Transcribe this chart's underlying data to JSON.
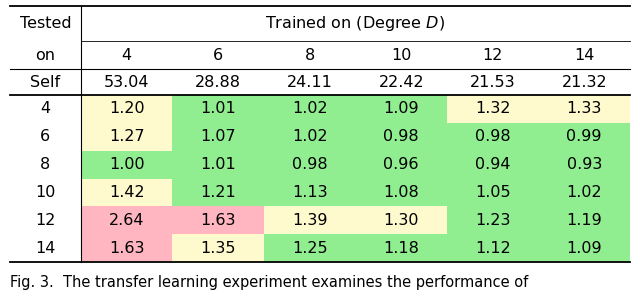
{
  "header_row1_col0": "Tested",
  "header_row1_span": "Trained on (Degree $D$)",
  "header_row2": [
    "on",
    "4",
    "6",
    "8",
    "10",
    "12",
    "14"
  ],
  "self_row": [
    "Self",
    "53.04",
    "28.88",
    "24.11",
    "22.42",
    "21.53",
    "21.32"
  ],
  "row_labels": [
    "4",
    "6",
    "8",
    "10",
    "12",
    "14"
  ],
  "data": [
    [
      1.2,
      1.01,
      1.02,
      1.09,
      1.32,
      1.33
    ],
    [
      1.27,
      1.07,
      1.02,
      0.98,
      0.98,
      0.99
    ],
    [
      1.0,
      1.01,
      0.98,
      0.96,
      0.94,
      0.93
    ],
    [
      1.42,
      1.21,
      1.13,
      1.08,
      1.05,
      1.02
    ],
    [
      2.64,
      1.63,
      1.39,
      1.3,
      1.23,
      1.19
    ],
    [
      1.63,
      1.35,
      1.25,
      1.18,
      1.12,
      1.09
    ]
  ],
  "cell_colors": [
    [
      "#fffacd",
      "#90ee90",
      "#90ee90",
      "#90ee90",
      "#fffacd",
      "#fffacd"
    ],
    [
      "#fffacd",
      "#90ee90",
      "#90ee90",
      "#90ee90",
      "#90ee90",
      "#90ee90"
    ],
    [
      "#90ee90",
      "#90ee90",
      "#90ee90",
      "#90ee90",
      "#90ee90",
      "#90ee90"
    ],
    [
      "#fffacd",
      "#90ee90",
      "#90ee90",
      "#90ee90",
      "#90ee90",
      "#90ee90"
    ],
    [
      "#ffb6c1",
      "#ffb6c1",
      "#fffacd",
      "#fffacd",
      "#90ee90",
      "#90ee90"
    ],
    [
      "#ffb6c1",
      "#fffacd",
      "#90ee90",
      "#90ee90",
      "#90ee90",
      "#90ee90"
    ]
  ],
  "caption": "Fig. 3.  The transfer learning experiment examines the performance of",
  "font_size": 11.5,
  "caption_font_size": 10.5
}
